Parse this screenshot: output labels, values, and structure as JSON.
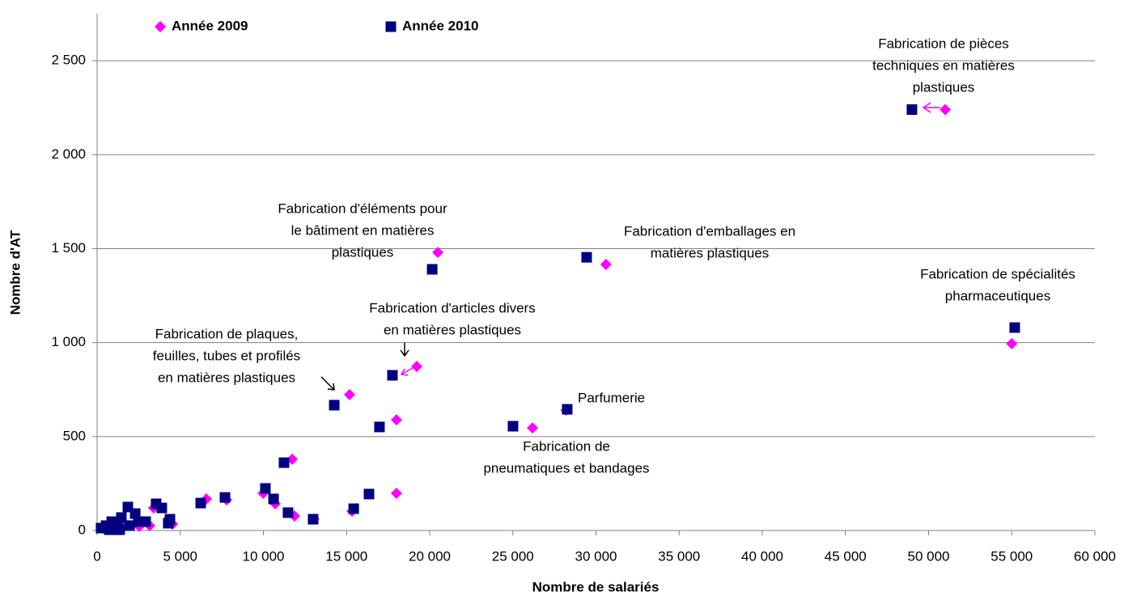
{
  "chart_data": {
    "type": "scatter",
    "xlabel": "Nombre de salariés",
    "ylabel": "Nombre d'AT",
    "xlim": [
      0,
      60000
    ],
    "ylim": [
      0,
      2750
    ],
    "xticks": [
      0,
      {
        "value": 5000,
        "label": "5 000"
      },
      {
        "value": 10000,
        "label": "10 000"
      },
      {
        "value": 15000,
        "label": "15 000"
      },
      {
        "value": 20000,
        "label": "20 000"
      },
      {
        "value": 25000,
        "label": "25 000"
      },
      {
        "value": 30000,
        "label": "30 000"
      },
      {
        "value": 35000,
        "label": "35 000"
      },
      {
        "value": 40000,
        "label": "40 000"
      },
      {
        "value": 45000,
        "label": "45 000"
      },
      {
        "value": 50000,
        "label": "50 000"
      },
      {
        "value": 55000,
        "label": "55 000"
      },
      {
        "value": 60000,
        "label": "60 000"
      }
    ],
    "yticks": [
      0,
      500,
      {
        "value": 1000,
        "label": "1 000"
      },
      {
        "value": 1500,
        "label": "1 500"
      },
      {
        "value": 2000,
        "label": "2 000"
      },
      {
        "value": 2500,
        "label": "2 500"
      }
    ],
    "grid": true,
    "legend": "top",
    "series": [
      {
        "name": "Année 2009",
        "color": "#ff00ff",
        "marker": "diamond",
        "x": [
          51000,
          20490,
          30600,
          55000,
          19220,
          15180,
          18000,
          26180,
          28200,
          11730,
          9980,
          10710,
          11870,
          13040,
          15330,
          18000,
          7790,
          6570,
          3400,
          4530,
          3160,
          1950,
          2530,
          970,
          490,
          1560,
          2820
        ],
        "values": [
          2240,
          1480,
          1416,
          994,
          873,
          723,
          589,
          546,
          640,
          379,
          198,
          142,
          77,
          60,
          103,
          198,
          163,
          168,
          120,
          34,
          26,
          26,
          22,
          22,
          13,
          47,
          47
        ]
      },
      {
        "name": "Année 2010",
        "color": "#000080",
        "marker": "square",
        "x": [
          49000,
          20150,
          29440,
          55180,
          17760,
          14260,
          16980,
          25010,
          28270,
          11240,
          10120,
          10610,
          11480,
          12990,
          15430,
          16350,
          7690,
          6230,
          3550,
          3890,
          4380,
          4280,
          1850,
          2290,
          1460,
          1220,
          880,
          540,
          240,
          2920,
          2480,
          1950,
          1360,
          730
        ],
        "values": [
          2240,
          1390,
          1454,
          1080,
          826,
          667,
          551,
          555,
          645,
          361,
          224,
          168,
          95,
          60,
          116,
          194,
          176,
          146,
          142,
          120,
          60,
          39,
          125,
          90,
          69,
          26,
          47,
          26,
          13,
          47,
          47,
          26,
          4,
          4
        ]
      }
    ],
    "annotations": [
      [
        "Fabrication de pièces",
        "techniques en matières",
        "plastiques"
      ],
      [
        "Fabrication d'éléments pour",
        "le bâtiment en matières",
        "plastiques"
      ],
      [
        "Fabrication d'emballages en",
        "matières plastiques"
      ],
      [
        "Fabrication de spécialités",
        "pharmaceutiques"
      ],
      [
        "Fabrication d'articles divers",
        "en matières plastiques"
      ],
      [
        "Fabrication de plaques,",
        "feuilles, tubes et profilés",
        "en matières plastiques"
      ],
      [
        "Parfumerie"
      ],
      [
        "Fabrication de",
        "pneumatiques et bandages"
      ]
    ]
  }
}
